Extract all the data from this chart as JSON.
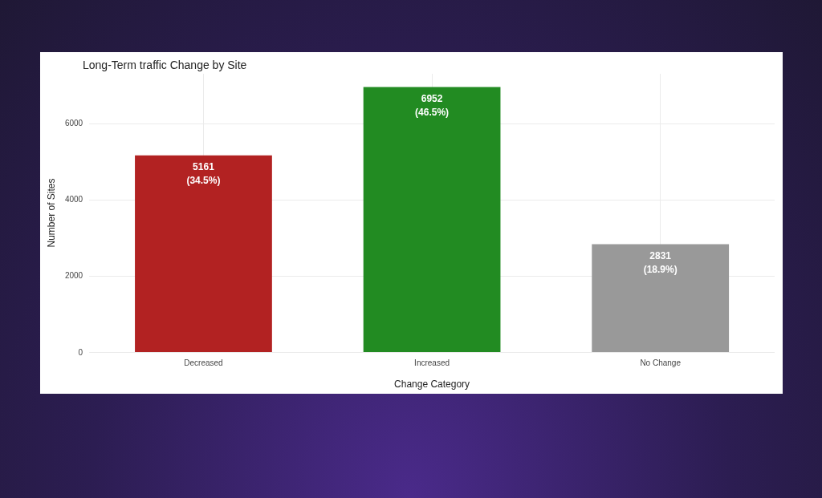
{
  "chart_data": {
    "type": "bar",
    "title": "Long-Term traffic Change by Site",
    "xlabel": "Change Category",
    "ylabel": "Number of Sites",
    "categories": [
      "Decreased",
      "Increased",
      "No Change"
    ],
    "values": [
      5161,
      6952,
      2831
    ],
    "colors": [
      "#b22222",
      "#228b22",
      "#999999"
    ],
    "value_labels": [
      "5161\n(34.5%)",
      "6952\n(46.5%)",
      "2831\n(18.9%)"
    ],
    "ylim": [
      0,
      7300
    ],
    "yticks": [
      0,
      2000,
      4000,
      6000
    ],
    "grid": true
  }
}
